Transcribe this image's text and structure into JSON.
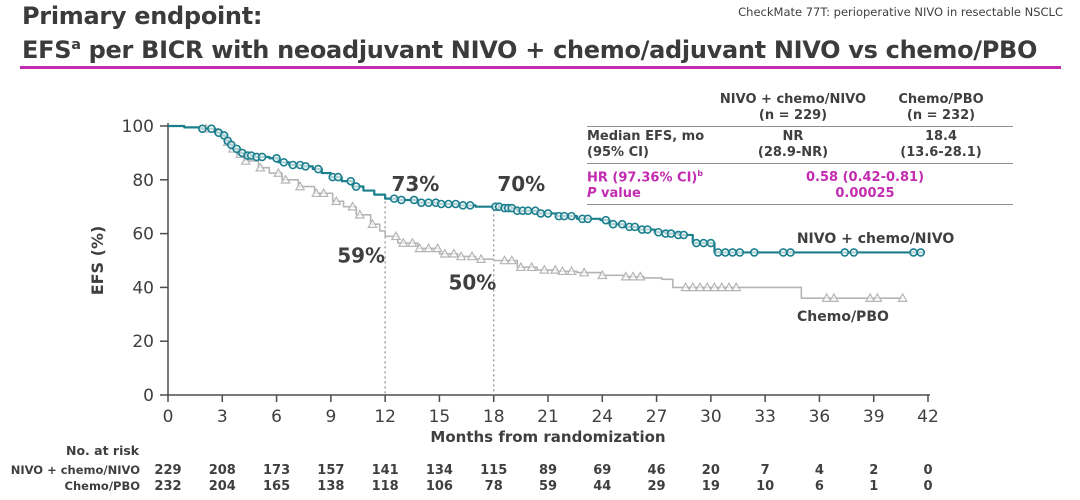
{
  "header": {
    "study_label": "CheckMate 77T: perioperative NIVO in resectable NSCLC",
    "title_line1": "Primary endpoint:",
    "title_line2_pre": "EFS",
    "title_line2_sup": "a",
    "title_line2_post": " per BICR with neoadjuvant NIVO + chemo/adjuvant NIVO vs chemo/PBO"
  },
  "stats_table": {
    "col1_header_line1": "NIVO + chemo/NIVO",
    "col1_header_line2": "(n = 229)",
    "col2_header_line1": "Chemo/PBO",
    "col2_header_line2": "(n = 232)",
    "row1_label_line1": "Median EFS, mo",
    "row1_label_line2": "(95% CI)",
    "row1_col1_line1": "NR",
    "row1_col1_line2": "(28.9-NR)",
    "row1_col2_line1": "18.4",
    "row1_col2_line2": "(13.6-28.1)",
    "row2_label_line1_pre": "HR (97.36% CI)",
    "row2_label_line1_sup": "b",
    "row2_label_line2_italic": "P",
    "row2_label_line2_rest": " value",
    "row2_value_line1": "0.58 (0.42-0.81)",
    "row2_value_line2": "0.00025"
  },
  "colors": {
    "nivo": "#1b7f8e",
    "pbo": "#b5b5b8",
    "magenta": "#c32cb0",
    "text": "#3f3f3f",
    "axis": "#4d4d4d"
  },
  "chart_data": {
    "type": "line",
    "subtype": "kaplan-meier",
    "title": "",
    "xlabel": "Months from randomization",
    "ylabel": "EFS (%)",
    "xlim": [
      0,
      42
    ],
    "ylim": [
      0,
      100
    ],
    "xticks": [
      0,
      3,
      6,
      9,
      12,
      15,
      18,
      21,
      24,
      27,
      30,
      33,
      36,
      39,
      42
    ],
    "yticks": [
      0,
      20,
      40,
      60,
      80,
      100
    ],
    "grid": false,
    "landmark_lines": [
      {
        "month": 12,
        "top_pct": 72
      },
      {
        "month": 18,
        "top_pct": 69
      }
    ],
    "series": [
      {
        "key": "pbo",
        "name": "Chemo/PBO",
        "marker": "triangle",
        "landmark_values": {
          "12": "59%",
          "18": "50%"
        },
        "steps": [
          [
            0,
            100
          ],
          [
            0.9,
            99.5
          ],
          [
            2,
            99
          ],
          [
            2.8,
            98
          ],
          [
            3,
            96
          ],
          [
            3.2,
            94
          ],
          [
            3.5,
            91.5
          ],
          [
            3.8,
            89.5
          ],
          [
            4.2,
            87
          ],
          [
            5,
            84.5
          ],
          [
            5.6,
            82.5
          ],
          [
            6.3,
            80
          ],
          [
            7.2,
            77.5
          ],
          [
            8.1,
            75
          ],
          [
            9.1,
            72
          ],
          [
            9.7,
            70
          ],
          [
            10.4,
            67
          ],
          [
            11.2,
            63.5
          ],
          [
            11.7,
            61
          ],
          [
            12,
            59
          ],
          [
            12.7,
            56.5
          ],
          [
            13.8,
            54.5
          ],
          [
            15,
            52.5
          ],
          [
            16,
            51.5
          ],
          [
            17,
            50.5
          ],
          [
            18,
            50
          ],
          [
            19.3,
            47.5
          ],
          [
            20.4,
            46.5
          ],
          [
            21.5,
            46
          ],
          [
            22.6,
            45.5
          ],
          [
            23.9,
            44.5
          ],
          [
            25.2,
            44
          ],
          [
            26.3,
            43.5
          ],
          [
            27.3,
            43
          ],
          [
            27.9,
            40
          ],
          [
            35,
            36
          ],
          [
            40.6,
            36
          ]
        ],
        "censor_months": [
          2.1,
          3.3,
          3.6,
          4,
          4.3,
          5.1,
          6.1,
          6.5,
          7.3,
          8.2,
          8.6,
          9.3,
          10.2,
          10.6,
          11.3,
          12.6,
          13,
          13.5,
          13.9,
          14.4,
          14.9,
          15.3,
          15.8,
          16.2,
          16.8,
          17.3,
          18.6,
          19,
          19.5,
          20.1,
          20.8,
          21.4,
          21.8,
          22.3,
          23,
          24,
          25.3,
          25.7,
          26.1,
          28.6,
          29,
          29.4,
          29.8,
          30.2,
          30.6,
          31,
          31.4,
          36.4,
          36.8,
          38.8,
          39.2,
          40.6
        ]
      },
      {
        "key": "nivo",
        "name": "NIVO + chemo/NIVO",
        "marker": "circle",
        "landmark_values": {
          "12": "73%",
          "18": "70%"
        },
        "steps": [
          [
            0,
            100
          ],
          [
            0.9,
            99.5
          ],
          [
            1.8,
            99
          ],
          [
            2.6,
            97.5
          ],
          [
            3,
            96.5
          ],
          [
            3.2,
            94.5
          ],
          [
            3.4,
            93
          ],
          [
            3.6,
            91.5
          ],
          [
            3.9,
            90
          ],
          [
            4.3,
            89
          ],
          [
            4.8,
            88.5
          ],
          [
            5.6,
            88
          ],
          [
            6.1,
            86.5
          ],
          [
            6.7,
            85.5
          ],
          [
            7.4,
            85
          ],
          [
            8,
            84
          ],
          [
            8.5,
            82.5
          ],
          [
            9,
            81
          ],
          [
            9.6,
            79.5
          ],
          [
            10.2,
            77.5
          ],
          [
            10.8,
            76
          ],
          [
            11.4,
            74.5
          ],
          [
            12,
            73
          ],
          [
            12.7,
            72.5
          ],
          [
            13.8,
            71.5
          ],
          [
            14.9,
            71
          ],
          [
            16,
            70.5
          ],
          [
            17,
            70
          ],
          [
            18.4,
            69.5
          ],
          [
            19.3,
            68.5
          ],
          [
            20.4,
            67.5
          ],
          [
            21.5,
            66.5
          ],
          [
            22.6,
            65.5
          ],
          [
            23.9,
            65
          ],
          [
            24.4,
            63.5
          ],
          [
            25.2,
            62.5
          ],
          [
            26,
            61.5
          ],
          [
            26.9,
            60.5
          ],
          [
            27.5,
            60
          ],
          [
            28.2,
            59.5
          ],
          [
            29,
            56.5
          ],
          [
            30.2,
            53
          ],
          [
            41.8,
            53
          ]
        ],
        "censor_months": [
          1.9,
          2.4,
          2.8,
          3.1,
          3.3,
          3.5,
          3.8,
          4.1,
          4.4,
          4.6,
          4.9,
          5.2,
          6,
          6.4,
          6.9,
          7.3,
          7.6,
          8.3,
          9.1,
          9.4,
          10.1,
          10.4,
          12.5,
          12.9,
          13.6,
          14,
          14.4,
          14.8,
          15.1,
          15.5,
          15.9,
          16.3,
          16.7,
          18.1,
          18.3,
          18.6,
          18.8,
          19,
          19.3,
          19.6,
          19.9,
          20.3,
          20.6,
          21,
          21.6,
          21.9,
          22.3,
          22.9,
          23.2,
          24.2,
          24.6,
          25.1,
          25.5,
          25.8,
          26.2,
          26.5,
          27.1,
          27.5,
          27.8,
          28.2,
          28.5,
          29.2,
          29.6,
          30,
          30.4,
          30.8,
          31.2,
          31.6,
          32.4,
          34,
          34.4,
          37.4,
          37.9,
          41.2,
          41.6
        ]
      }
    ],
    "annotations": [
      {
        "text": "73%",
        "series": "nivo",
        "month": 12.35,
        "pct": 75.8,
        "anchor": "start",
        "size": "lg"
      },
      {
        "text": "70%",
        "series": "nivo",
        "month": 18.2,
        "pct": 75.8,
        "anchor": "start",
        "size": "lg"
      },
      {
        "text": "59%",
        "series": "pbo",
        "month": 9.35,
        "pct": 49.2,
        "anchor": "start",
        "size": "lg"
      },
      {
        "text": "50%",
        "series": "pbo",
        "month": 15.5,
        "pct": 39.2,
        "anchor": "start",
        "size": "lg"
      },
      {
        "text": "NIVO + chemo/NIVO",
        "series": "nivo",
        "month": 39.1,
        "pct": 56.5,
        "anchor": "middle",
        "size": "md"
      },
      {
        "text": "Chemo/PBO",
        "series": "pbo",
        "month": 37.3,
        "pct": 27.5,
        "anchor": "middle",
        "size": "md"
      }
    ],
    "risk_table": {
      "title": "No. at risk",
      "months": [
        0,
        3,
        6,
        9,
        12,
        15,
        18,
        21,
        24,
        27,
        30,
        33,
        36,
        39,
        42
      ],
      "rows": [
        {
          "key": "nivo",
          "label": "NIVO + chemo/NIVO",
          "values": [
            229,
            208,
            173,
            157,
            141,
            134,
            115,
            89,
            69,
            46,
            20,
            7,
            4,
            2,
            0
          ]
        },
        {
          "key": "pbo",
          "label": "Chemo/PBO",
          "values": [
            232,
            204,
            165,
            138,
            118,
            106,
            78,
            59,
            44,
            29,
            19,
            10,
            6,
            1,
            0
          ]
        }
      ]
    }
  }
}
